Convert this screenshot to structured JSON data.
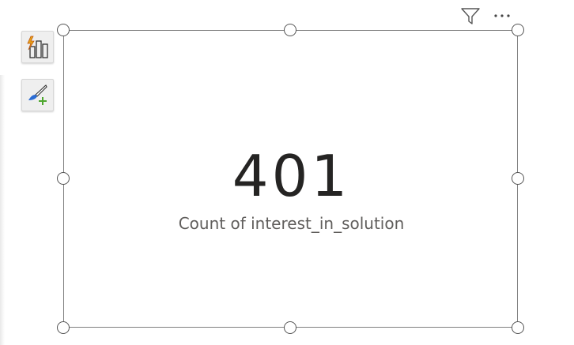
{
  "card": {
    "value": "401",
    "label": "Count of interest_in_solution"
  },
  "visual_header": {
    "icons": [
      "filter-icon",
      "more-options-icon"
    ]
  },
  "side_toolbar": {
    "buttons": [
      "build-visual-icon",
      "format-visual-icon"
    ]
  },
  "colors": {
    "value_text": "#252423",
    "label_text": "#605e5c",
    "border": "#7f7f7f",
    "accent_orange": "#e8a317",
    "accent_green": "#4ea72e",
    "accent_blue": "#2b6cd4"
  }
}
